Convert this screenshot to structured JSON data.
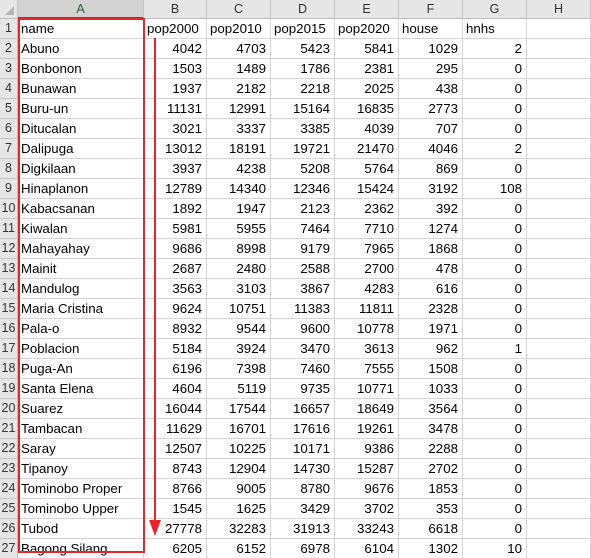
{
  "columns": [
    "A",
    "B",
    "C",
    "D",
    "E",
    "F",
    "G",
    "H"
  ],
  "header_row": {
    "num": "1",
    "cells": [
      "name",
      "pop2000",
      "pop2010",
      "pop2015",
      "pop2020",
      "house",
      "hnhs",
      ""
    ]
  },
  "rows": [
    {
      "num": "2",
      "cells": [
        "Abuno",
        "4042",
        "4703",
        "5423",
        "5841",
        "1029",
        "2",
        ""
      ]
    },
    {
      "num": "3",
      "cells": [
        "Bonbonon",
        "1503",
        "1489",
        "1786",
        "2381",
        "295",
        "0",
        ""
      ]
    },
    {
      "num": "4",
      "cells": [
        "Bunawan",
        "1937",
        "2182",
        "2218",
        "2025",
        "438",
        "0",
        ""
      ]
    },
    {
      "num": "5",
      "cells": [
        "Buru-un",
        "11131",
        "12991",
        "15164",
        "16835",
        "2773",
        "0",
        ""
      ]
    },
    {
      "num": "6",
      "cells": [
        "Ditucalan",
        "3021",
        "3337",
        "3385",
        "4039",
        "707",
        "0",
        ""
      ]
    },
    {
      "num": "7",
      "cells": [
        "Dalipuga",
        "13012",
        "18191",
        "19721",
        "21470",
        "4046",
        "2",
        ""
      ]
    },
    {
      "num": "8",
      "cells": [
        "Digkilaan",
        "3937",
        "4238",
        "5208",
        "5764",
        "869",
        "0",
        ""
      ]
    },
    {
      "num": "9",
      "cells": [
        "Hinaplanon",
        "12789",
        "14340",
        "12346",
        "15424",
        "3192",
        "108",
        ""
      ]
    },
    {
      "num": "10",
      "cells": [
        "Kabacsanan",
        "1892",
        "1947",
        "2123",
        "2362",
        "392",
        "0",
        ""
      ]
    },
    {
      "num": "11",
      "cells": [
        "Kiwalan",
        "5981",
        "5955",
        "7464",
        "7710",
        "1274",
        "0",
        ""
      ]
    },
    {
      "num": "12",
      "cells": [
        "Mahayahay",
        "9686",
        "8998",
        "9179",
        "7965",
        "1868",
        "0",
        ""
      ]
    },
    {
      "num": "13",
      "cells": [
        "Mainit",
        "2687",
        "2480",
        "2588",
        "2700",
        "478",
        "0",
        ""
      ]
    },
    {
      "num": "14",
      "cells": [
        "Mandulog",
        "3563",
        "3103",
        "3867",
        "4283",
        "616",
        "0",
        ""
      ]
    },
    {
      "num": "15",
      "cells": [
        "Maria Cristina",
        "9624",
        "10751",
        "11383",
        "11811",
        "2328",
        "0",
        ""
      ]
    },
    {
      "num": "16",
      "cells": [
        "Pala-o",
        "8932",
        "9544",
        "9600",
        "10778",
        "1971",
        "0",
        ""
      ]
    },
    {
      "num": "17",
      "cells": [
        "Poblacion",
        "5184",
        "3924",
        "3470",
        "3613",
        "962",
        "1",
        ""
      ]
    },
    {
      "num": "18",
      "cells": [
        "Puga-An",
        "6196",
        "7398",
        "7460",
        "7555",
        "1508",
        "0",
        ""
      ]
    },
    {
      "num": "19",
      "cells": [
        "Santa Elena",
        "4604",
        "5119",
        "9735",
        "10771",
        "1033",
        "0",
        ""
      ]
    },
    {
      "num": "20",
      "cells": [
        "Suarez",
        "16044",
        "17544",
        "16657",
        "18649",
        "3564",
        "0",
        ""
      ]
    },
    {
      "num": "21",
      "cells": [
        "Tambacan",
        "11629",
        "16701",
        "17616",
        "19261",
        "3478",
        "0",
        ""
      ]
    },
    {
      "num": "22",
      "cells": [
        "Saray",
        "12507",
        "10225",
        "10171",
        "9386",
        "2288",
        "0",
        ""
      ]
    },
    {
      "num": "23",
      "cells": [
        "Tipanoy",
        "8743",
        "12904",
        "14730",
        "15287",
        "2702",
        "0",
        ""
      ]
    },
    {
      "num": "24",
      "cells": [
        "Tominobo Proper",
        "8766",
        "9005",
        "8780",
        "9676",
        "1853",
        "0",
        ""
      ]
    },
    {
      "num": "25",
      "cells": [
        "Tominobo Upper",
        "1545",
        "1625",
        "3429",
        "3702",
        "353",
        "0",
        ""
      ]
    },
    {
      "num": "26",
      "cells": [
        "Tubod",
        "27778",
        "32283",
        "31913",
        "33243",
        "6618",
        "0",
        ""
      ]
    },
    {
      "num": "27",
      "cells": [
        "Bagong Silang",
        "6205",
        "6152",
        "6978",
        "6104",
        "1302",
        "10",
        ""
      ]
    }
  ],
  "annotation": {
    "box_color": "#e8262a",
    "arrow_color": "#e8262a"
  }
}
